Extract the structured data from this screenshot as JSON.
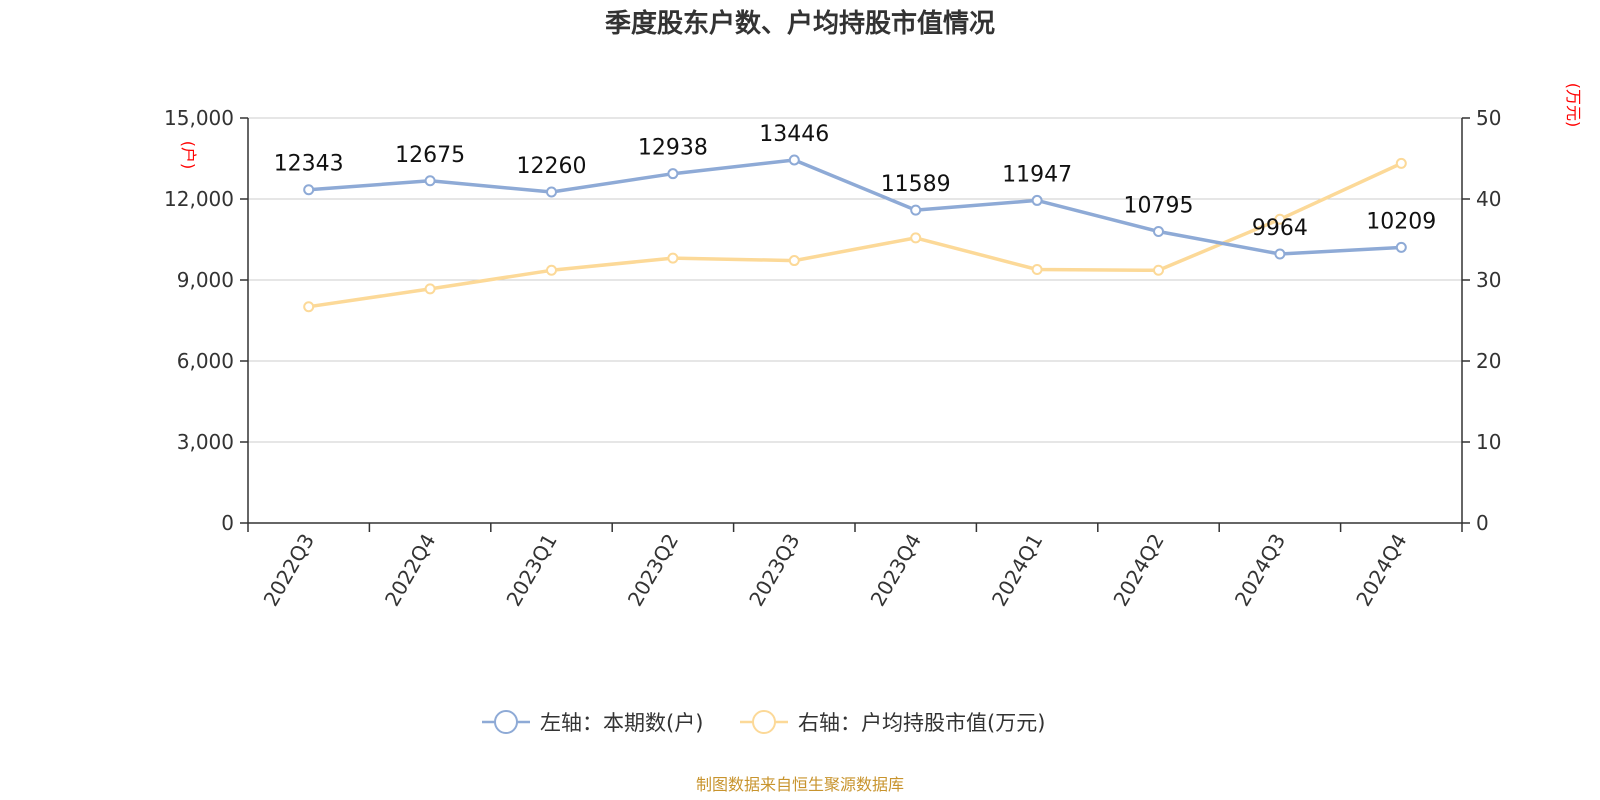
{
  "chart_data": {
    "type": "line",
    "title": "季度股东户数、户均持股市值情况",
    "categories": [
      "2022Q3",
      "2022Q4",
      "2023Q1",
      "2023Q2",
      "2023Q3",
      "2023Q4",
      "2024Q1",
      "2024Q2",
      "2024Q3",
      "2024Q4"
    ],
    "left_axis": {
      "unit": "(户)",
      "ylim": [
        0,
        15000
      ],
      "ticks": [
        "0",
        "3,000",
        "6,000",
        "9,000",
        "12,000",
        "15,000"
      ],
      "tick_values": [
        0,
        3000,
        6000,
        9000,
        12000,
        15000
      ]
    },
    "right_axis": {
      "unit": "(万元)",
      "ylim": [
        0,
        50
      ],
      "ticks": [
        "0",
        "10",
        "20",
        "30",
        "40",
        "50"
      ],
      "tick_values": [
        0,
        10,
        20,
        30,
        40,
        50
      ]
    },
    "series": [
      {
        "name": "左轴：本期数(户)",
        "axis": "left",
        "color": "#8eaad6",
        "values": [
          12343,
          12675,
          12260,
          12938,
          13446,
          11589,
          11947,
          10795,
          9964,
          10209
        ],
        "labels": [
          "12343",
          "12675",
          "12260",
          "12938",
          "13446",
          "11589",
          "11947",
          "10795",
          "9964",
          "10209"
        ]
      },
      {
        "name": "右轴：户均持股市值(万元)",
        "axis": "right",
        "color": "#fcd998",
        "values": [
          26.7,
          28.9,
          31.2,
          32.7,
          32.4,
          35.2,
          31.3,
          31.2,
          37.5,
          44.4
        ]
      }
    ],
    "grid": true,
    "legend": "bottom-center",
    "source": "制图数据来自恒生聚源数据库"
  }
}
